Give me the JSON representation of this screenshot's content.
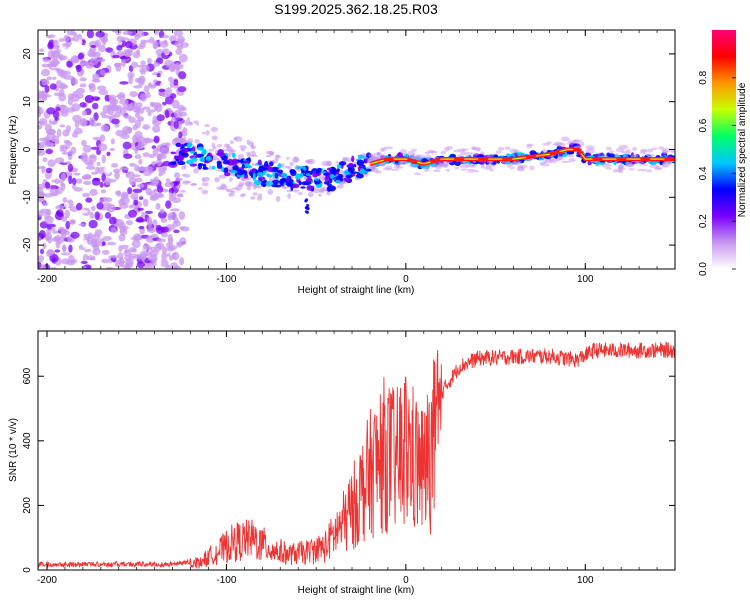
{
  "title": "S199.2025.362.18.25.R03",
  "chart_data": [
    {
      "type": "heatmap",
      "xlabel": "Height of straight line (km)",
      "ylabel": "Frequency (Hz)",
      "xlim": [
        -205,
        150
      ],
      "ylim": [
        -25,
        25
      ],
      "xticks": [
        -200,
        -100,
        0,
        100
      ],
      "yticks": [
        -20,
        -10,
        0,
        10,
        20
      ],
      "ridge": [
        {
          "x": -130,
          "y": -1
        },
        {
          "x": -120,
          "y": -1
        },
        {
          "x": -100,
          "y": -3
        },
        {
          "x": -80,
          "y": -5
        },
        {
          "x": -60,
          "y": -6
        },
        {
          "x": -40,
          "y": -6
        },
        {
          "x": -30,
          "y": -4
        },
        {
          "x": -20,
          "y": -3
        },
        {
          "x": -10,
          "y": -2
        },
        {
          "x": 0,
          "y": -2
        },
        {
          "x": 10,
          "y": -3
        },
        {
          "x": 20,
          "y": -2
        },
        {
          "x": 40,
          "y": -2
        },
        {
          "x": 60,
          "y": -2
        },
        {
          "x": 80,
          "y": -1
        },
        {
          "x": 90,
          "y": 0
        },
        {
          "x": 96,
          "y": 0
        },
        {
          "x": 100,
          "y": -2
        },
        {
          "x": 150,
          "y": -2
        }
      ],
      "colorbar": {
        "label": "Normalized spectral amplitude",
        "range": [
          0.0,
          1.0
        ],
        "ticks": [
          "0.0",
          "0.2",
          "0.4",
          "0.6",
          "0.8"
        ],
        "colors": [
          "#ffffff",
          "#c896f0",
          "#7800ff",
          "#0000ff",
          "#00c8ff",
          "#00ff64",
          "#c8ff00",
          "#ff9600",
          "#ff0000",
          "#ff0078"
        ]
      }
    },
    {
      "type": "line",
      "xlabel": "Height of straight line (km)",
      "ylabel": "SNR (10 * v/v)",
      "xlim": [
        -205,
        150
      ],
      "ylim": [
        0,
        740
      ],
      "xticks": [
        -200,
        -100,
        0,
        100
      ],
      "yticks": [
        0,
        200,
        400,
        600
      ],
      "line_color": "#ee3333",
      "envelope": [
        {
          "x": -205,
          "y": 18
        },
        {
          "x": -130,
          "y": 18
        },
        {
          "x": -115,
          "y": 30
        },
        {
          "x": -105,
          "y": 70
        },
        {
          "x": -95,
          "y": 110
        },
        {
          "x": -85,
          "y": 120
        },
        {
          "x": -75,
          "y": 80
        },
        {
          "x": -65,
          "y": 60
        },
        {
          "x": -55,
          "y": 70
        },
        {
          "x": -45,
          "y": 90
        },
        {
          "x": -35,
          "y": 180
        },
        {
          "x": -28,
          "y": 260
        },
        {
          "x": -20,
          "y": 370
        },
        {
          "x": -12,
          "y": 450
        },
        {
          "x": -5,
          "y": 420
        },
        {
          "x": 0,
          "y": 480
        },
        {
          "x": 5,
          "y": 420
        },
        {
          "x": 10,
          "y": 380
        },
        {
          "x": 15,
          "y": 480
        },
        {
          "x": 20,
          "y": 560
        },
        {
          "x": 30,
          "y": 640
        },
        {
          "x": 40,
          "y": 665
        },
        {
          "x": 60,
          "y": 670
        },
        {
          "x": 80,
          "y": 672
        },
        {
          "x": 95,
          "y": 660
        },
        {
          "x": 105,
          "y": 690
        },
        {
          "x": 150,
          "y": 690
        }
      ]
    }
  ]
}
